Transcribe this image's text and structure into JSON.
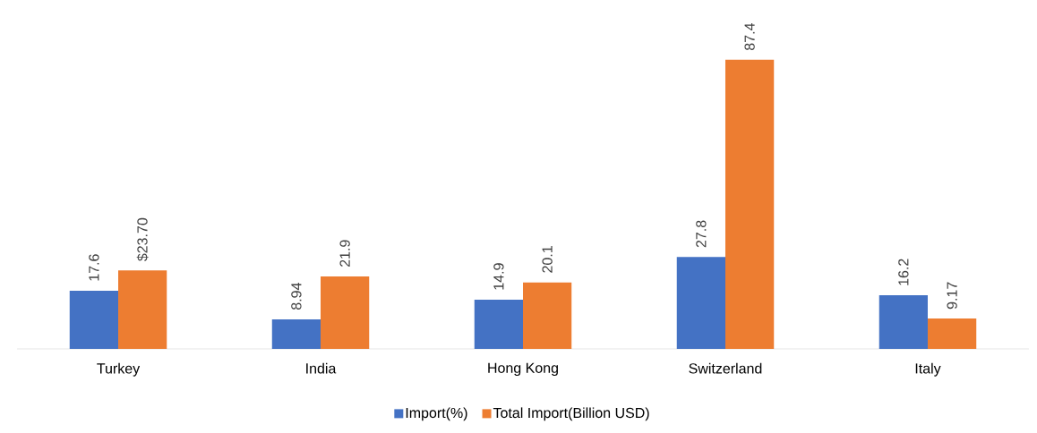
{
  "chart_data": {
    "type": "bar",
    "categories": [
      "Turkey",
      "India",
      "Hong Kong",
      "Switzerland",
      "Italy"
    ],
    "series": [
      {
        "name": "Import(%)",
        "color": "#4472c4",
        "values": [
          17.6,
          8.94,
          14.9,
          27.8,
          16.2
        ],
        "value_labels": [
          "17.6",
          "8.94",
          "14.9",
          "27.8",
          "16.2"
        ]
      },
      {
        "name": "Total Import(Billion USD)",
        "color": "#ed7d31",
        "values": [
          23.7,
          21.9,
          20.1,
          87.4,
          9.17
        ],
        "value_labels": [
          "$23.70",
          "21.9",
          "20.1",
          "87.4",
          "9.17"
        ]
      }
    ],
    "legend": "bottom"
  }
}
